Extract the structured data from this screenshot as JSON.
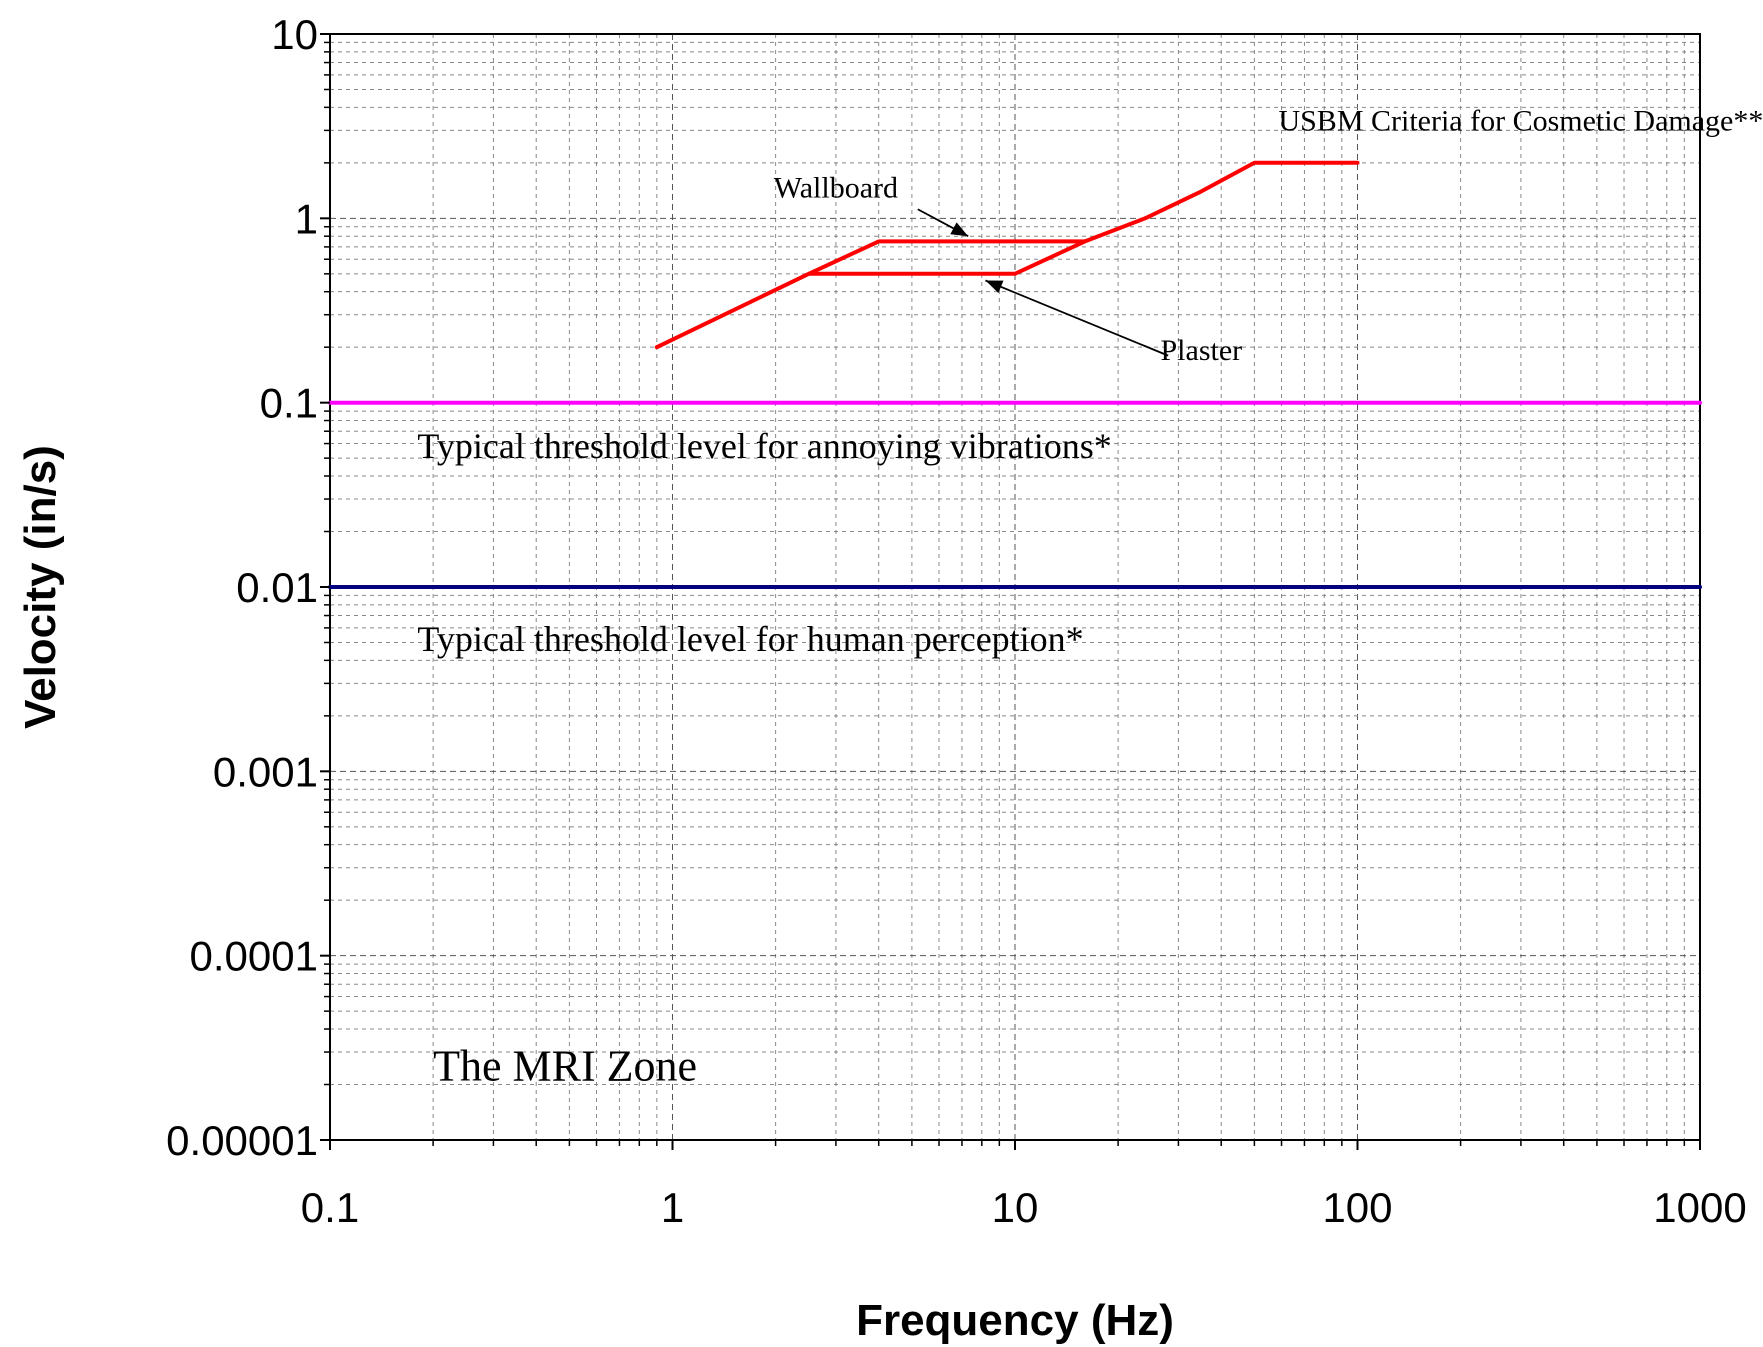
{
  "chart_data": {
    "type": "line",
    "title": "",
    "xlabel": "Frequency (Hz)",
    "ylabel": "Velocity (in/s)",
    "x_scale": "log",
    "y_scale": "log",
    "xlim": [
      0.1,
      1000
    ],
    "ylim": [
      1e-05,
      10
    ],
    "x_ticks": [
      "0.1",
      "1",
      "10",
      "100",
      "1000"
    ],
    "y_ticks": [
      "10",
      "1",
      "0.1",
      "0.01",
      "0.001",
      "0.0001",
      "0.00001"
    ],
    "grid": true,
    "series": [
      {
        "color": "#ff0000",
        "points": [
          [
            0.9,
            0.2
          ],
          [
            2.5,
            0.5
          ],
          [
            10,
            0.5
          ],
          [
            16,
            0.75
          ],
          [
            24,
            1.0
          ],
          [
            35,
            1.4
          ],
          [
            50,
            2.0
          ],
          [
            100,
            2.0
          ]
        ]
      },
      {
        "color": "#ff0000",
        "points": [
          [
            2.5,
            0.5
          ],
          [
            4,
            0.75
          ],
          [
            16,
            0.75
          ]
        ]
      },
      {
        "color": "#ff00ff",
        "points": [
          [
            0.1,
            0.1
          ],
          [
            1000,
            0.1
          ]
        ]
      },
      {
        "color": "#000080",
        "points": [
          [
            0.1,
            0.01
          ],
          [
            1000,
            0.01
          ]
        ]
      }
    ],
    "annotations": [
      {
        "text": "USBM Criteria for Cosmetic Damage**",
        "x": 300,
        "y": 3.0,
        "anchor": "middle",
        "size": "md"
      },
      {
        "text": "Wallboard",
        "x": 3.0,
        "y": 1.3,
        "anchor": "middle",
        "size": "md"
      },
      {
        "text": "Plaster",
        "x": 35,
        "y": 0.17,
        "anchor": "middle",
        "size": "md"
      },
      {
        "text": "Typical threshold level for annoying vibrations*",
        "x": 0.18,
        "y": 0.05,
        "anchor": "start",
        "size": "lg"
      },
      {
        "text": "Typical threshold level for human perception*",
        "x": 0.18,
        "y": 0.0045,
        "anchor": "start",
        "size": "lg"
      },
      {
        "text": "The MRI Zone",
        "x": 0.2,
        "y": 2.1e-05,
        "anchor": "start",
        "size": "xl"
      }
    ],
    "arrows": [
      {
        "from": [
          5.2,
          1.12
        ],
        "to": [
          7.3,
          0.8
        ]
      },
      {
        "from": [
          28,
          0.18
        ],
        "to": [
          8.2,
          0.46
        ]
      }
    ]
  }
}
